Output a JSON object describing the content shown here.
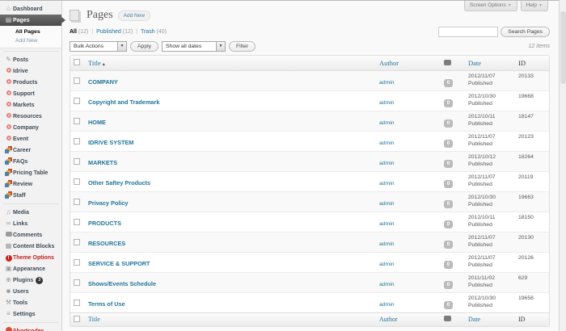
{
  "colors": {
    "link_blue": "#21759b",
    "menu_alert_red": "#cc2222",
    "cpt_ring_red": "#e58080",
    "shortcodes_red": "#d5512e",
    "active_menu_bg": "#4b4b4b",
    "comment_bubble_gray": "#bbbbbb"
  },
  "meta_tabs": {
    "screen_options": "Screen Options",
    "help": "Help"
  },
  "sidebar": {
    "items": [
      {
        "label": "Dashboard",
        "icon": "dashboard-icon",
        "kind": "top"
      },
      {
        "label": "Pages",
        "icon": "pages-icon",
        "kind": "active"
      },
      {
        "label": "All Pages",
        "kind": "sub-current"
      },
      {
        "label": "Add New",
        "kind": "sub"
      },
      {
        "kind": "sep"
      },
      {
        "label": "Posts",
        "icon": "posts-icon",
        "kind": "top"
      },
      {
        "label": "Idrive",
        "icon": "cpt-circle-icon",
        "kind": "top"
      },
      {
        "label": "Products",
        "icon": "cpt-circle-icon",
        "kind": "top"
      },
      {
        "label": "Support",
        "icon": "cpt-circle-icon",
        "kind": "top"
      },
      {
        "label": "Markets",
        "icon": "cpt-circle-icon",
        "kind": "top"
      },
      {
        "label": "Resources",
        "icon": "cpt-circle-icon",
        "kind": "top"
      },
      {
        "label": "Company",
        "icon": "cpt-circle-icon",
        "kind": "top"
      },
      {
        "label": "Event",
        "icon": "cpt-circle-icon",
        "kind": "top"
      },
      {
        "label": "Career",
        "icon": "layers-icon",
        "kind": "top"
      },
      {
        "label": "FAQs",
        "icon": "layers-icon",
        "kind": "top"
      },
      {
        "label": "Pricing Table",
        "icon": "layers-icon",
        "kind": "top"
      },
      {
        "label": "Review",
        "icon": "layers-icon",
        "kind": "top"
      },
      {
        "label": "Staff",
        "icon": "layers-icon",
        "kind": "top"
      },
      {
        "kind": "sep"
      },
      {
        "label": "Media",
        "icon": "media-icon",
        "kind": "top"
      },
      {
        "label": "Links",
        "icon": "links-icon",
        "kind": "top"
      },
      {
        "label": "Comments",
        "icon": "comments-icon",
        "kind": "top"
      },
      {
        "label": "Content Blocks",
        "icon": "blocks-icon",
        "kind": "top"
      },
      {
        "label": "Theme Options",
        "icon": "alert-icon",
        "kind": "top-red"
      },
      {
        "label": "Appearance",
        "icon": "appearance-icon",
        "kind": "top"
      },
      {
        "label": "Plugins",
        "icon": "plugins-icon",
        "kind": "top",
        "badge": "3"
      },
      {
        "label": "Users",
        "icon": "users-icon",
        "kind": "top"
      },
      {
        "label": "Tools",
        "icon": "tools-icon",
        "kind": "top"
      },
      {
        "label": "Settings",
        "icon": "settings-icon",
        "kind": "top"
      },
      {
        "kind": "sep"
      },
      {
        "label": "Shortcodes",
        "icon": "shortcodes-icon",
        "kind": "top-red"
      }
    ]
  },
  "header": {
    "title": "Pages",
    "add_new": "Add New"
  },
  "views": [
    {
      "label": "All",
      "count": "(12)",
      "current": true
    },
    {
      "label": "Published",
      "count": "(12)"
    },
    {
      "label": "Trash",
      "count": "(40)"
    }
  ],
  "views_separator": "|",
  "search": {
    "value": "",
    "button": "Search Pages"
  },
  "toolbar": {
    "bulk_actions": "Bulk Actions",
    "apply": "Apply",
    "dates_filter": "Show all dates",
    "filter": "Filter",
    "items_count": "12 items"
  },
  "table": {
    "headers": {
      "title": "Title",
      "author": "Author",
      "date": "Date",
      "id": "ID"
    },
    "rows": [
      {
        "title": "COMPANY",
        "author": "admin",
        "comments": "0",
        "date": "2012/11/07",
        "status": "Published",
        "id": "20133"
      },
      {
        "title": "Copyright and Trademark",
        "author": "admin",
        "comments": "0",
        "date": "2012/10/30",
        "status": "Published",
        "id": "19668"
      },
      {
        "title": "HOME",
        "author": "admin",
        "comments": "0",
        "date": "2012/10/11",
        "status": "Published",
        "id": "18147"
      },
      {
        "title": "IDRIVE SYSTEM",
        "author": "admin",
        "comments": "0",
        "date": "2012/11/07",
        "status": "Published",
        "id": "20123"
      },
      {
        "title": "MARKETS",
        "author": "admin",
        "comments": "0",
        "date": "2012/10/12",
        "status": "Published",
        "id": "18264"
      },
      {
        "title": "Other Saftey Products",
        "author": "admin",
        "comments": "0",
        "date": "2012/11/07",
        "status": "Published",
        "id": "20119"
      },
      {
        "title": "Privacy Policy",
        "author": "admin",
        "comments": "0",
        "date": "2012/10/30",
        "status": "Published",
        "id": "19663"
      },
      {
        "title": "PRODUCTS",
        "author": "admin",
        "comments": "0",
        "date": "2012/10/11",
        "status": "Published",
        "id": "18150"
      },
      {
        "title": "RESOURCES",
        "author": "admin",
        "comments": "0",
        "date": "2012/11/07",
        "status": "Published",
        "id": "20130"
      },
      {
        "title": "SERVICE & SUPPORT",
        "author": "admin",
        "comments": "0",
        "date": "2012/11/07",
        "status": "Published",
        "id": "20126"
      },
      {
        "title": "Shows/Events Schedule",
        "author": "admin",
        "comments": "0",
        "date": "2011/11/02",
        "status": "Published",
        "id": "629"
      },
      {
        "title": "Terms of Use",
        "author": "admin",
        "comments": "0",
        "date": "2012/10/30",
        "status": "Published",
        "id": "19658"
      }
    ]
  }
}
